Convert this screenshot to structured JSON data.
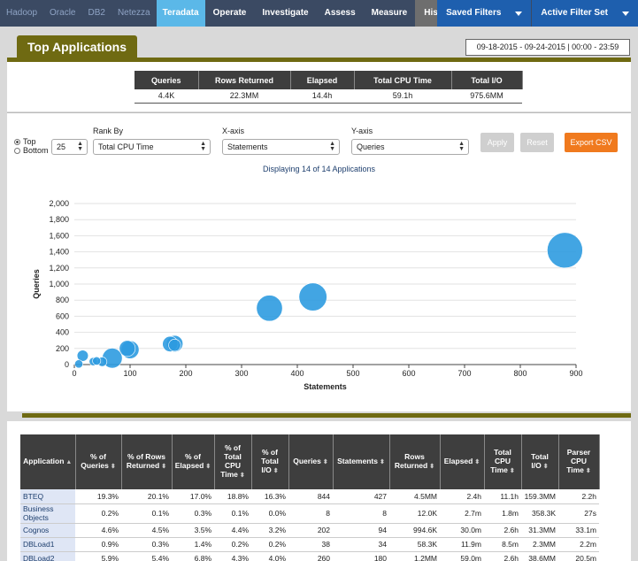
{
  "nav": {
    "platforms": [
      "Hadoop",
      "Oracle",
      "DB2",
      "Netezza"
    ],
    "active_platform": "Teradata",
    "menu": [
      "Operate",
      "Investigate",
      "Assess",
      "Measure"
    ],
    "history": "History",
    "saved_filters": "Saved Filters",
    "active_filter_set": "Active Filter Set"
  },
  "header": {
    "title": "Top Applications",
    "date_range": "09-18-2015  -  09-24-2015  |  00:00  -  23:59"
  },
  "summary": {
    "headers": [
      "Queries",
      "Rows Returned",
      "Elapsed",
      "Total CPU Time",
      "Total I/O"
    ],
    "values": [
      "4.4K",
      "22.3MM",
      "14.4h",
      "59.1h",
      "975.6MM"
    ]
  },
  "controls": {
    "top_label": "Top",
    "bottom_label": "Bottom",
    "count": "25",
    "rank_by_label": "Rank By",
    "rank_by": "Total CPU Time",
    "xaxis_label": "X-axis",
    "xaxis": "Statements",
    "yaxis_label": "Y-axis",
    "yaxis": "Queries",
    "apply": "Apply",
    "reset": "Reset",
    "export": "Export CSV",
    "displaying": "Displaying 14 of 14 Applications"
  },
  "chart_data": {
    "type": "scatter",
    "xlabel": "Statements",
    "ylabel": "Queries",
    "xlim": [
      0,
      900
    ],
    "ylim": [
      0,
      2000
    ],
    "xticks": [
      0,
      100,
      200,
      300,
      400,
      500,
      600,
      700,
      800,
      900
    ],
    "yticks": [
      0,
      200,
      400,
      600,
      800,
      1000,
      1200,
      1400,
      1600,
      1800,
      2000
    ],
    "ytick_labels": [
      "0",
      "200",
      "400",
      "600",
      "800",
      "1,000",
      "1,200",
      "1,400",
      "1,600",
      "1,800",
      "2,000"
    ],
    "grid": "horizontal",
    "color": "#2d9be0",
    "points": [
      {
        "x": 880,
        "y": 1420,
        "size": 159.3
      },
      {
        "x": 428,
        "y": 840,
        "size": 90
      },
      {
        "x": 350,
        "y": 700,
        "size": 75
      },
      {
        "x": 180,
        "y": 260,
        "size": 22
      },
      {
        "x": 172,
        "y": 255,
        "size": 18
      },
      {
        "x": 100,
        "y": 185,
        "size": 28
      },
      {
        "x": 95,
        "y": 200,
        "size": 20
      },
      {
        "x": 68,
        "y": 80,
        "size": 38
      },
      {
        "x": 50,
        "y": 35,
        "size": 3
      },
      {
        "x": 15,
        "y": 110,
        "size": 6
      },
      {
        "x": 8,
        "y": 8,
        "size": 1.5
      },
      {
        "x": 34,
        "y": 38,
        "size": 1.5
      },
      {
        "x": 40,
        "y": 45,
        "size": 1.5
      },
      {
        "x": 180,
        "y": 240,
        "size": 8
      }
    ]
  },
  "table": {
    "headers": [
      {
        "label": "Application",
        "sort": "▲"
      },
      {
        "label": "% of Queries",
        "sort": "⬍"
      },
      {
        "label": "% of Rows Returned",
        "sort": "⬍"
      },
      {
        "label": "% of Elapsed",
        "sort": "⬍"
      },
      {
        "label": "% of Total CPU Time",
        "sort": "⬍"
      },
      {
        "label": "% of Total I/O",
        "sort": "⬍"
      },
      {
        "label": "Queries",
        "sort": "⬍"
      },
      {
        "label": "Statements",
        "sort": "⬍"
      },
      {
        "label": "Rows Returned",
        "sort": "⬍"
      },
      {
        "label": "Elapsed",
        "sort": "⬍"
      },
      {
        "label": "Total CPU Time",
        "sort": "⬍"
      },
      {
        "label": "Total I/O",
        "sort": "⬍"
      },
      {
        "label": "Parser CPU Time",
        "sort": "⬍"
      }
    ],
    "rows": [
      [
        "BTEQ",
        "19.3%",
        "20.1%",
        "17.0%",
        "18.8%",
        "16.3%",
        "844",
        "427",
        "4.5MM",
        "2.4h",
        "11.1h",
        "159.3MM",
        "2.2h"
      ],
      [
        "Business Objects",
        "0.2%",
        "0.1%",
        "0.3%",
        "0.1%",
        "0.0%",
        "8",
        "8",
        "12.0K",
        "2.7m",
        "1.8m",
        "358.3K",
        "27s"
      ],
      [
        "Cognos",
        "4.6%",
        "4.5%",
        "3.5%",
        "4.4%",
        "3.2%",
        "202",
        "94",
        "994.6K",
        "30.0m",
        "2.6h",
        "31.3MM",
        "33.1m"
      ],
      [
        "DBLoad1",
        "0.9%",
        "0.3%",
        "1.4%",
        "0.2%",
        "0.2%",
        "38",
        "34",
        "58.3K",
        "11.9m",
        "8.5m",
        "2.3MM",
        "2.2m"
      ],
      [
        "DBLoad2",
        "5.9%",
        "5.4%",
        "6.8%",
        "4.3%",
        "4.0%",
        "260",
        "180",
        "1.2MM",
        "59.0m",
        "2.6h",
        "38.6MM",
        "20.5m"
      ]
    ]
  }
}
